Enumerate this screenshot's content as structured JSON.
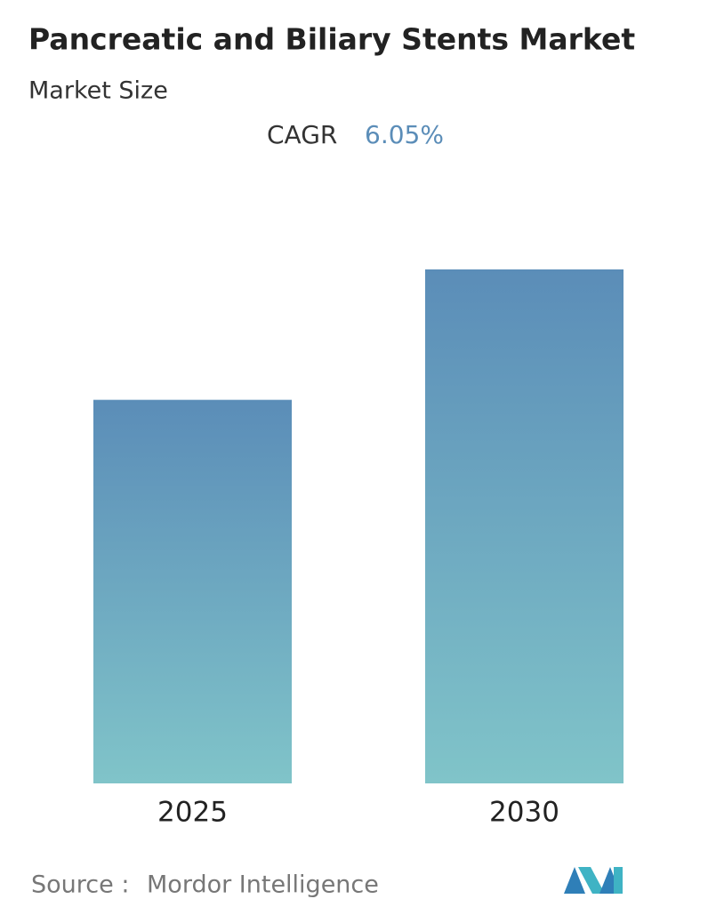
{
  "chart_data": {
    "type": "bar",
    "title": "Pancreatic and Biliary Stents Market",
    "subtitle": "Market Size",
    "cagr_label": "CAGR",
    "cagr_value": "6.05%",
    "categories": [
      "2025",
      "2030"
    ],
    "values": [
      100,
      134
    ],
    "ylim": [
      0,
      134
    ],
    "color_top": "#5b8db8",
    "color_bottom": "#80c4c9",
    "source_label": "Source :",
    "source": "Mordor Intelligence"
  }
}
